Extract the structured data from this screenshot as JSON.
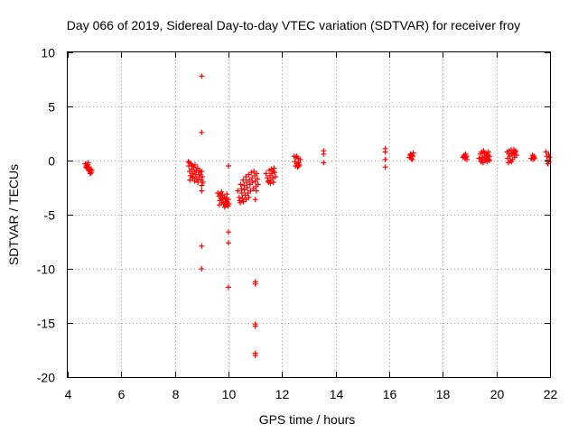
{
  "chart_data": {
    "type": "scatter",
    "title": "Day 066 of 2019, Sidereal Day-to-day VTEC variation (SDTVAR) for receiver froy",
    "xlabel": "GPS time / hours",
    "ylabel": "SDTVAR / TECUs",
    "xlim": [
      4,
      22
    ],
    "ylim": [
      -20,
      10
    ],
    "xticks": [
      4,
      6,
      8,
      10,
      12,
      14,
      16,
      18,
      20,
      22
    ],
    "yticks": [
      10,
      5,
      0,
      -5,
      -10,
      -15,
      -20
    ],
    "x_tick_labels": [
      "4",
      "6",
      "8",
      "10",
      "12",
      "14",
      "16",
      "18",
      "20",
      "22"
    ],
    "y_tick_labels": [
      "10",
      "5",
      "0",
      "-5",
      "-10",
      "-15",
      "-20"
    ],
    "grid": true,
    "marker": "plus",
    "color": "#ff0000",
    "series": [
      {
        "name": "SDTVAR",
        "points": [
          [
            4.65,
            -0.3
          ],
          [
            4.7,
            -0.5
          ],
          [
            4.72,
            -0.7
          ],
          [
            4.75,
            -0.4
          ],
          [
            4.78,
            -0.9
          ],
          [
            4.8,
            -0.6
          ],
          [
            4.82,
            -1.0
          ],
          [
            4.85,
            -0.8
          ],
          [
            4.88,
            -1.1
          ],
          [
            4.9,
            -0.9
          ],
          [
            4.68,
            -0.6
          ],
          [
            4.76,
            -0.2
          ],
          [
            4.84,
            -1.2
          ],
          [
            8.5,
            -0.1
          ],
          [
            8.52,
            -0.5
          ],
          [
            8.55,
            -1.0
          ],
          [
            8.58,
            -1.4
          ],
          [
            8.6,
            -0.3
          ],
          [
            8.62,
            -0.8
          ],
          [
            8.65,
            -1.2
          ],
          [
            8.68,
            -1.6
          ],
          [
            8.7,
            -0.6
          ],
          [
            8.72,
            -1.0
          ],
          [
            8.75,
            -0.4
          ],
          [
            8.78,
            -1.3
          ],
          [
            8.8,
            -0.9
          ],
          [
            8.82,
            -1.7
          ],
          [
            8.85,
            -0.7
          ],
          [
            8.88,
            -1.1
          ],
          [
            8.9,
            -1.5
          ],
          [
            8.92,
            -0.9
          ],
          [
            8.95,
            -1.3
          ],
          [
            8.98,
            -1.8
          ],
          [
            9.0,
            -1.0
          ],
          [
            9.02,
            -1.5
          ],
          [
            9.05,
            -2.0
          ],
          [
            8.56,
            -1.8
          ],
          [
            8.64,
            -0.5
          ],
          [
            8.74,
            -1.9
          ],
          [
            8.86,
            -2.0
          ],
          [
            8.54,
            -0.2
          ],
          [
            8.66,
            -1.5
          ],
          [
            9.0,
            -2.3
          ],
          [
            9.0,
            -2.8
          ],
          [
            9.0,
            7.8
          ],
          [
            9.0,
            2.6
          ],
          [
            9.0,
            -7.9
          ],
          [
            9.0,
            -10.0
          ],
          [
            9.6,
            -3.0
          ],
          [
            9.65,
            -3.3
          ],
          [
            9.68,
            -3.7
          ],
          [
            9.7,
            -3.1
          ],
          [
            9.72,
            -3.5
          ],
          [
            9.75,
            -3.9
          ],
          [
            9.78,
            -3.2
          ],
          [
            9.8,
            -3.6
          ],
          [
            9.82,
            -4.0
          ],
          [
            9.85,
            -3.4
          ],
          [
            9.88,
            -3.8
          ],
          [
            9.9,
            -4.1
          ],
          [
            9.92,
            -3.5
          ],
          [
            9.95,
            -3.9
          ],
          [
            9.98,
            -4.2
          ],
          [
            10.0,
            -3.6
          ],
          [
            10.02,
            -4.0
          ],
          [
            9.66,
            -4.1
          ],
          [
            9.74,
            -2.9
          ],
          [
            9.86,
            -4.3
          ],
          [
            9.94,
            -3.1
          ],
          [
            10.0,
            -0.5
          ],
          [
            10.0,
            -6.6
          ],
          [
            10.0,
            -7.6
          ],
          [
            10.0,
            -11.7
          ],
          [
            10.35,
            -2.8
          ],
          [
            10.4,
            -3.4
          ],
          [
            10.42,
            -3.7
          ],
          [
            10.45,
            -2.2
          ],
          [
            10.48,
            -2.6
          ],
          [
            10.5,
            -3.0
          ],
          [
            10.52,
            -3.5
          ],
          [
            10.55,
            -1.8
          ],
          [
            10.58,
            -2.3
          ],
          [
            10.6,
            -2.7
          ],
          [
            10.62,
            -3.2
          ],
          [
            10.65,
            -1.5
          ],
          [
            10.68,
            -2.0
          ],
          [
            10.7,
            -2.5
          ],
          [
            10.72,
            -3.0
          ],
          [
            10.75,
            -1.3
          ],
          [
            10.78,
            -1.8
          ],
          [
            10.8,
            -2.2
          ],
          [
            10.82,
            -2.8
          ],
          [
            10.85,
            -1.1
          ],
          [
            10.88,
            -1.6
          ],
          [
            10.9,
            -2.0
          ],
          [
            10.92,
            -2.6
          ],
          [
            10.95,
            -1.0
          ],
          [
            10.98,
            -1.4
          ],
          [
            11.0,
            -1.9
          ],
          [
            11.02,
            -2.4
          ],
          [
            11.05,
            -1.2
          ],
          [
            11.08,
            -1.7
          ],
          [
            11.1,
            -2.2
          ],
          [
            10.44,
            -3.9
          ],
          [
            10.56,
            -3.8
          ],
          [
            10.66,
            -3.6
          ],
          [
            10.76,
            -3.4
          ],
          [
            11.0,
            -3.6
          ],
          [
            11.04,
            -2.8
          ],
          [
            11.0,
            -11.4
          ],
          [
            11.0,
            -11.2
          ],
          [
            11.0,
            -15.1
          ],
          [
            11.0,
            -15.3
          ],
          [
            11.0,
            -17.8
          ],
          [
            11.0,
            -18.0
          ],
          [
            11.4,
            -1.2
          ],
          [
            11.45,
            -1.6
          ],
          [
            11.5,
            -2.0
          ],
          [
            11.52,
            -0.9
          ],
          [
            11.55,
            -1.4
          ],
          [
            11.58,
            -1.8
          ],
          [
            11.6,
            -0.8
          ],
          [
            11.62,
            -1.2
          ],
          [
            11.65,
            -1.6
          ],
          [
            11.68,
            -2.0
          ],
          [
            11.7,
            -0.7
          ],
          [
            11.72,
            -1.1
          ],
          [
            11.75,
            -1.5
          ],
          [
            11.48,
            -1.9
          ],
          [
            11.56,
            -2.1
          ],
          [
            11.66,
            -1.0
          ],
          [
            12.45,
            0.4
          ],
          [
            12.48,
            -0.1
          ],
          [
            12.5,
            -0.5
          ],
          [
            12.52,
            0.3
          ],
          [
            12.55,
            -0.3
          ],
          [
            12.58,
            -0.6
          ],
          [
            12.6,
            0.2
          ],
          [
            12.62,
            -0.2
          ],
          [
            12.65,
            -0.4
          ],
          [
            12.68,
            0.1
          ],
          [
            12.55,
            0.4
          ],
          [
            12.62,
            -0.5
          ],
          [
            13.55,
            0.9
          ],
          [
            13.55,
            0.6
          ],
          [
            13.55,
            -0.2
          ],
          [
            15.85,
            1.1
          ],
          [
            15.85,
            0.8
          ],
          [
            15.85,
            0.1
          ],
          [
            15.85,
            -0.6
          ],
          [
            16.75,
            0.3
          ],
          [
            16.8,
            0.6
          ],
          [
            16.82,
            0.2
          ],
          [
            16.85,
            0.5
          ],
          [
            16.88,
            0.4
          ],
          [
            16.9,
            0.7
          ],
          [
            16.78,
            0.5
          ],
          [
            16.86,
            0.1
          ],
          [
            18.75,
            0.3
          ],
          [
            18.8,
            0.5
          ],
          [
            18.82,
            0.2
          ],
          [
            18.85,
            0.6
          ],
          [
            18.88,
            0.4
          ],
          [
            18.9,
            0.1
          ],
          [
            18.78,
            0.4
          ],
          [
            18.86,
            0.3
          ],
          [
            19.35,
            0.2
          ],
          [
            19.4,
            0.6
          ],
          [
            19.42,
            -0.1
          ],
          [
            19.45,
            0.8
          ],
          [
            19.48,
            0.3
          ],
          [
            19.5,
            -0.2
          ],
          [
            19.52,
            0.9
          ],
          [
            19.55,
            0.4
          ],
          [
            19.58,
            0.0
          ],
          [
            19.6,
            0.7
          ],
          [
            19.62,
            0.2
          ],
          [
            19.65,
            -0.1
          ],
          [
            19.68,
            0.5
          ],
          [
            19.7,
            0.8
          ],
          [
            19.72,
            0.1
          ],
          [
            19.75,
            0.4
          ],
          [
            19.46,
            0.1
          ],
          [
            19.56,
            0.7
          ],
          [
            19.64,
            0.4
          ],
          [
            19.74,
            0.0
          ],
          [
            20.4,
            0.8
          ],
          [
            20.42,
            0.2
          ],
          [
            20.45,
            -0.2
          ],
          [
            20.48,
            0.9
          ],
          [
            20.5,
            0.4
          ],
          [
            20.52,
            0.0
          ],
          [
            20.55,
            1.0
          ],
          [
            20.58,
            0.6
          ],
          [
            20.6,
            0.1
          ],
          [
            20.62,
            0.7
          ],
          [
            20.65,
            1.0
          ],
          [
            20.68,
            0.3
          ],
          [
            20.7,
            0.8
          ],
          [
            20.72,
            0.9
          ],
          [
            20.75,
            0.5
          ],
          [
            20.46,
            0.6
          ],
          [
            20.56,
            -0.1
          ],
          [
            20.66,
            0.6
          ],
          [
            21.3,
            0.2
          ],
          [
            21.35,
            0.5
          ],
          [
            21.38,
            0.3
          ],
          [
            21.4,
            0.4
          ],
          [
            21.42,
            0.2
          ],
          [
            21.36,
            0.1
          ],
          [
            21.85,
            0.8
          ],
          [
            21.88,
            0.4
          ],
          [
            21.9,
            0.0
          ],
          [
            21.92,
            -0.3
          ],
          [
            21.95,
            0.6
          ],
          [
            21.96,
            -0.1
          ],
          [
            21.98,
            0.3
          ]
        ]
      }
    ]
  }
}
